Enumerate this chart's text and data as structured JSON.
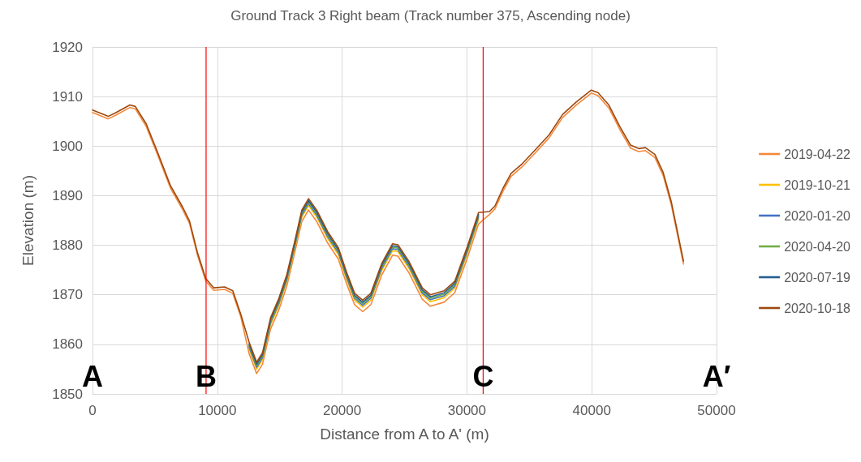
{
  "chart_data": {
    "type": "line",
    "title": "Ground Track 3 Right beam (Track number 375, Ascending node)",
    "xlabel": "Distance from A to A' (m)",
    "ylabel": "Elevation (m)",
    "x": [
      0,
      1260,
      1900,
      3000,
      3430,
      4300,
      5160,
      6250,
      7220,
      7770,
      8420,
      9070,
      9720,
      10590,
      11240,
      11890,
      12540,
      13150,
      13620,
      14270,
      14920,
      15570,
      16230,
      16770,
      17310,
      17960,
      18830,
      19700,
      20350,
      21000,
      21650,
      22300,
      23170,
      24040,
      24470,
      25340,
      26420,
      27070,
      28160,
      29020,
      30000,
      30930,
      31800,
      32240,
      32890,
      33540,
      34410,
      35500,
      36590,
      37670,
      38760,
      39960,
      40500,
      41370,
      42240,
      43110,
      43760,
      44300,
      45060,
      45720,
      46370,
      47350
    ],
    "series": [
      {
        "name": "2019-04-22",
        "color": "#f4883a",
        "values": [
          1906.8,
          1905.5,
          1906.3,
          1907.8,
          1907.5,
          1904.0,
          1898.6,
          1891.5,
          1887.2,
          1884.4,
          1877.9,
          1872.8,
          1870.9,
          1871.1,
          1870.3,
          1865.5,
          1858.2,
          1854.1,
          1856.0,
          1863.1,
          1866.9,
          1871.8,
          1878.8,
          1884.8,
          1887.1,
          1884.8,
          1880.5,
          1877.2,
          1872.3,
          1868.0,
          1866.6,
          1868.0,
          1874.0,
          1878.0,
          1877.8,
          1874.5,
          1869.1,
          1867.7,
          1868.5,
          1870.4,
          1877.2,
          1884.3,
          1886.2,
          1887.3,
          1890.9,
          1893.9,
          1895.8,
          1898.7,
          1901.7,
          1905.8,
          1908.3,
          1910.7,
          1910.2,
          1907.7,
          1903.4,
          1899.6,
          1898.9,
          1899.1,
          1897.7,
          1894.1,
          1888.2,
          1876.2
        ]
      },
      {
        "name": "2019-10-21",
        "color": "#ffc000",
        "values": [
          null,
          null,
          null,
          null,
          null,
          null,
          null,
          null,
          null,
          null,
          null,
          null,
          null,
          null,
          null,
          null,
          1859.1,
          1855.0,
          1856.9,
          1864.0,
          1867.8,
          1872.7,
          1879.7,
          1885.7,
          1888.0,
          1885.7,
          1881.4,
          1878.1,
          1873.2,
          1868.9,
          1867.5,
          1868.9,
          1874.9,
          1878.9,
          1878.7,
          1875.4,
          1870.0,
          1868.6,
          1869.4,
          1871.3,
          1878.1,
          1885.2,
          null,
          null,
          null,
          null,
          null,
          null,
          null,
          null,
          null,
          null,
          null,
          null,
          null,
          null,
          null,
          null,
          null,
          null,
          null,
          null
        ]
      },
      {
        "name": "2020-01-20",
        "color": "#4472c4",
        "values": [
          null,
          null,
          null,
          null,
          null,
          null,
          null,
          null,
          null,
          null,
          null,
          null,
          null,
          null,
          null,
          null,
          1859.5,
          1855.4,
          1857.3,
          1864.4,
          1868.2,
          1873.1,
          1880.1,
          1886.1,
          1888.4,
          1886.1,
          1881.8,
          1878.5,
          1873.6,
          1869.3,
          1867.9,
          1869.3,
          1875.3,
          1879.3,
          1879.1,
          1875.8,
          1870.4,
          1869.0,
          1869.8,
          1871.7,
          1878.5,
          1885.6,
          null,
          null,
          null,
          null,
          null,
          null,
          null,
          null,
          null,
          null,
          null,
          null,
          null,
          null,
          null,
          null,
          null,
          null,
          null,
          null
        ]
      },
      {
        "name": "2020-04-20",
        "color": "#70ad47",
        "values": [
          null,
          null,
          null,
          null,
          null,
          null,
          null,
          null,
          null,
          null,
          null,
          null,
          null,
          null,
          null,
          null,
          1859.8,
          1855.7,
          1857.6,
          1864.7,
          1868.5,
          1873.4,
          1880.4,
          1886.4,
          1888.7,
          1886.4,
          1882.1,
          1878.8,
          1873.9,
          1869.6,
          1868.2,
          1869.6,
          1875.6,
          1879.6,
          1879.4,
          1876.1,
          1870.7,
          1869.3,
          1870.1,
          1872.0,
          1878.8,
          1885.9,
          null,
          null,
          null,
          null,
          null,
          null,
          null,
          null,
          null,
          null,
          null,
          null,
          null,
          null,
          null,
          null,
          null,
          null,
          null,
          null
        ]
      },
      {
        "name": "2020-07-19",
        "color": "#255e91",
        "values": [
          null,
          null,
          null,
          null,
          null,
          null,
          null,
          null,
          null,
          null,
          null,
          null,
          null,
          null,
          null,
          null,
          1860.1,
          1856.0,
          1857.9,
          1865.0,
          1868.8,
          1873.7,
          1880.7,
          1886.7,
          1889.0,
          1886.7,
          1882.4,
          1879.1,
          1874.2,
          1869.9,
          1868.5,
          1869.9,
          1875.9,
          1879.9,
          1879.7,
          1876.4,
          1871.0,
          1869.6,
          1870.4,
          1872.3,
          1879.1,
          1886.2,
          null,
          null,
          null,
          null,
          null,
          null,
          null,
          null,
          null,
          null,
          null,
          null,
          null,
          null,
          null,
          null,
          null,
          null,
          null,
          null
        ]
      },
      {
        "name": "2020-10-18",
        "color": "#9e480e",
        "values": [
          1907.3,
          1906.0,
          1906.8,
          1908.3,
          1908.0,
          1904.5,
          1899.1,
          1892.0,
          1887.7,
          1884.9,
          1878.4,
          1873.3,
          1871.4,
          1871.6,
          1870.8,
          1866.0,
          1860.5,
          1856.4,
          1858.3,
          1865.4,
          1869.2,
          1874.1,
          1881.1,
          1887.1,
          1889.4,
          1887.1,
          1882.8,
          1879.5,
          1874.6,
          1870.3,
          1868.9,
          1870.3,
          1876.3,
          1880.3,
          1880.1,
          1876.8,
          1871.4,
          1870.0,
          1870.8,
          1872.7,
          1879.5,
          1886.6,
          1886.8,
          1887.9,
          1891.5,
          1894.5,
          1896.4,
          1899.3,
          1902.3,
          1906.4,
          1908.9,
          1911.3,
          1910.8,
          1908.3,
          1904.0,
          1900.2,
          1899.5,
          1899.7,
          1898.3,
          1894.7,
          1888.8,
          1876.8
        ]
      }
    ],
    "xlim": [
      0,
      50000
    ],
    "xticks": [
      0,
      10000,
      20000,
      30000,
      40000,
      50000
    ],
    "ylim": [
      1850,
      1920
    ],
    "yticks": [
      1850,
      1860,
      1870,
      1880,
      1890,
      1900,
      1910,
      1920
    ],
    "ref_lines": [
      {
        "axis": "x",
        "value": 9100,
        "label": "B",
        "color": "#ff0000"
      },
      {
        "axis": "x",
        "value": 31300,
        "label": "C",
        "color": "#ff0000"
      }
    ],
    "annotations": [
      "A",
      "A′"
    ],
    "grid": true,
    "legend": "right",
    "marker": "none",
    "line_style": "solid"
  }
}
